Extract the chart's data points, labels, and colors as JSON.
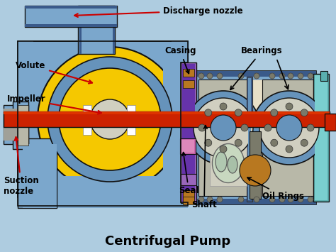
{
  "title": "Centrifugal Pump",
  "background_color": "#aecce0",
  "labels": {
    "discharge_nozzle": "Discharge nozzle",
    "volute": "Volute",
    "impeller": "Impeller",
    "suction_nozzle": "Suction\nnozzle",
    "casing": "Casing",
    "bearings": "Bearings",
    "seal": "Seal",
    "shaft": "Shaft",
    "oil_rings": "Oil Rings"
  },
  "colors": {
    "blue_body": "#7ba7cc",
    "blue_mid": "#6693bb",
    "blue_dark": "#3a5a8a",
    "yellow": "#f5c800",
    "yellow_light": "#ffd840",
    "red_shaft": "#cc2200",
    "red_bright": "#dd3300",
    "purple": "#9966bb",
    "purple_dark": "#6633aa",
    "gray": "#b8b8a8",
    "gray_light": "#d0cfc0",
    "gray_dark": "#7a7a6a",
    "gray_silver": "#a0a098",
    "green_light": "#c8d8c0",
    "orange_bolt": "#b87820",
    "teal": "#5aafaf",
    "teal_light": "#7acfcf",
    "black": "#111111",
    "white": "#ffffff",
    "red_arrow": "#cc0000",
    "pink_seal": "#cc66aa",
    "beige": "#e8e0c8"
  }
}
